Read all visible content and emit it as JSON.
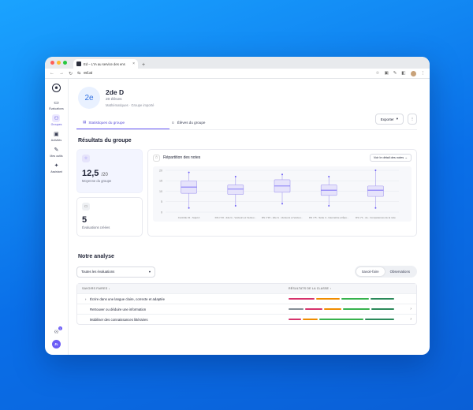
{
  "browser": {
    "tab_title": "Ed – L'IA au service des ens",
    "tab_close": "×",
    "new_tab": "+",
    "url": "ed.ai",
    "nav_back": "←",
    "nav_forward": "→",
    "nav_reload": "↻",
    "site_info": "⇆",
    "tool_icons": [
      "☆",
      "▣",
      "✎",
      "◧",
      "⋮"
    ]
  },
  "sidebar": {
    "logo": "☻",
    "items": [
      {
        "icon": "folder-icon",
        "glyph": "▭",
        "label": "Évaluations",
        "active": false
      },
      {
        "icon": "users-icon",
        "glyph": "⚇",
        "label": "Groupes",
        "active": true
      },
      {
        "icon": "image-icon",
        "glyph": "▣",
        "label": "Activités",
        "active": false
      },
      {
        "icon": "tools-icon",
        "glyph": "✎",
        "label": "Mes outils",
        "active": false
      },
      {
        "icon": "sparkle-icon",
        "glyph": "✦",
        "label": "Assistant",
        "active": false
      }
    ],
    "bell": "🔔",
    "bell_badge": "1",
    "user_initials": "JL"
  },
  "group": {
    "avatar": "2e",
    "name": "2de D",
    "count": "20 élèves",
    "subtitle": "Mathématiques · Groupe importé"
  },
  "actions": {
    "export": "Exporter",
    "export_caret": "▾",
    "more": "⋮"
  },
  "tabs": [
    {
      "label": "Statistiques du groupe",
      "icon": "chart-icon",
      "active": true
    },
    {
      "label": "Élèves du groupe",
      "icon": "user-icon",
      "active": false
    }
  ],
  "results": {
    "title": "Résultats du groupe",
    "average": {
      "value": "12,5",
      "suffix": "/20",
      "label": "Moyenne du groupe"
    },
    "evaluations": {
      "value": "5",
      "label": "Évaluations créées"
    }
  },
  "chart_data": {
    "type": "box",
    "title": "Répartition des notes",
    "detail_button": "Voir le détail des notes",
    "ylim": [
      0,
      20
    ],
    "yticks": [
      "20",
      "15",
      "10",
      "5",
      "0"
    ],
    "categories": [
      "Contrôle 01 - Sujet A",
      "DS n°16 - 2de G - Vecteurs et Vecteu...",
      "DS n°15 - 2de G - Vecteurs et Vecteu...",
      "DS n°5 - Série 4 - Géométrie et Équ...",
      "DS n°1 - 2e - Compétences de la note"
    ],
    "boxes": [
      {
        "min": 2,
        "q1": 9,
        "median": 12,
        "q3": 15,
        "max": 19
      },
      {
        "min": 3,
        "q1": 8.5,
        "median": 11,
        "q3": 13,
        "max": 17
      },
      {
        "min": 4,
        "q1": 9.5,
        "median": 12.5,
        "q3": 15.5,
        "max": 18
      },
      {
        "min": 3,
        "q1": 8,
        "median": 10.5,
        "q3": 13,
        "max": 17
      },
      {
        "min": 2,
        "q1": 7.5,
        "median": 10.5,
        "q3": 12.5,
        "max": 20
      }
    ],
    "colors": {
      "box_fill": "#e6e3fb",
      "box_stroke": "#a59cf0",
      "median": "#6b5cf6"
    }
  },
  "analysis": {
    "title": "Notre analyse",
    "filter": "Toutes les évaluations",
    "filter_caret": "▾",
    "segments": [
      {
        "label": "Savoir-faire",
        "active": true
      },
      {
        "label": "Observations",
        "active": false
      }
    ],
    "columns": [
      "Savoirs faires ↓",
      "Résultats de la classe ↑"
    ],
    "rows": [
      {
        "label": "Écrire dans une langue claire, correcte et adaptée",
        "expand": "›",
        "bars": [
          {
            "color": "#d6336c",
            "w": 24
          },
          {
            "color": "#f08c00",
            "w": 22
          },
          {
            "color": "#37b24d",
            "w": 26
          },
          {
            "color": "#2b8a5a",
            "w": 22
          }
        ],
        "chevron": ""
      },
      {
        "label": "Retrouver ou déduire une information",
        "expand": "",
        "bars": [
          {
            "color": "#868e96",
            "w": 16
          },
          {
            "color": "#d6336c",
            "w": 18
          },
          {
            "color": "#f08c00",
            "w": 18
          },
          {
            "color": "#37b24d",
            "w": 28
          },
          {
            "color": "#2b8a5a",
            "w": 24
          }
        ],
        "chevron": "›"
      },
      {
        "label": "Mobiliser des connaissances littéraires",
        "expand": "",
        "bars": [
          {
            "color": "#d6336c",
            "w": 12
          },
          {
            "color": "#f08c00",
            "w": 14
          },
          {
            "color": "#37b24d",
            "w": 42
          },
          {
            "color": "#2b8a5a",
            "w": 28
          }
        ],
        "chevron": "›"
      }
    ]
  },
  "colors": {
    "accent": "#6b5cf6",
    "background": "#0a6fe8"
  }
}
